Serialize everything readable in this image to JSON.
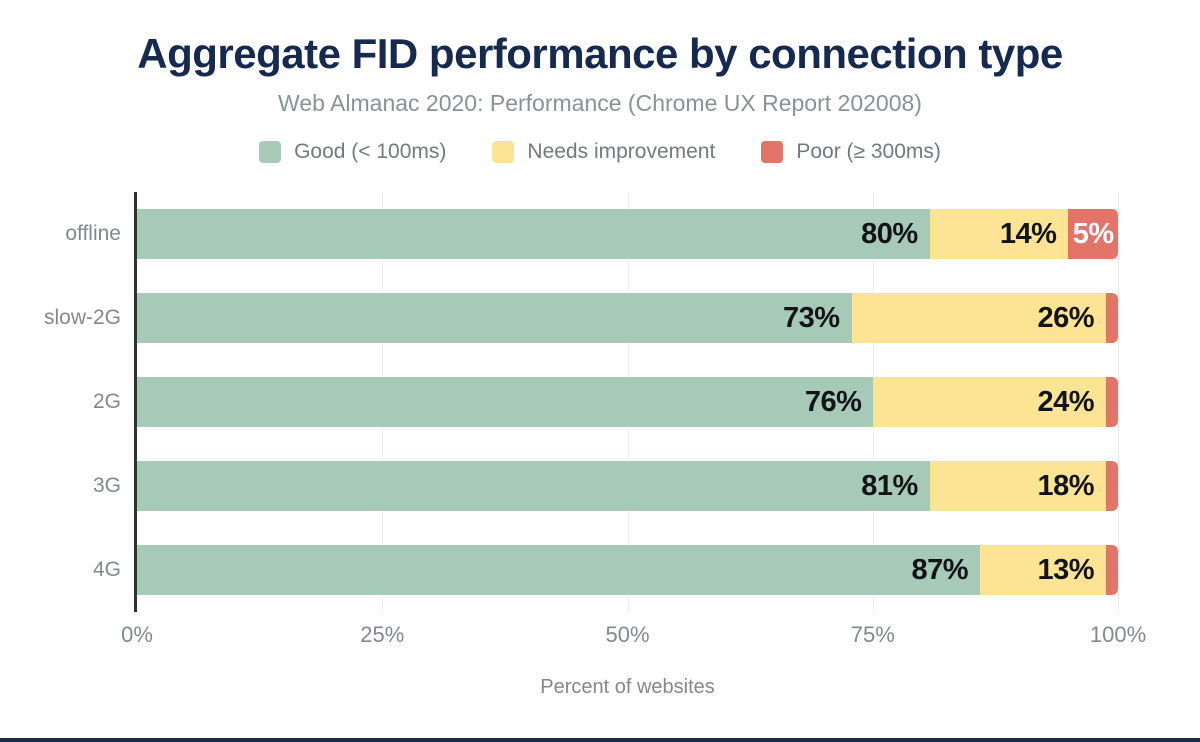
{
  "colors": {
    "title": "#152a4e",
    "subtitle_gray": "#8b9199",
    "axis_gray": "#84888e",
    "legend_gray": "#75797f",
    "axis_line": "#2e3138",
    "gridline": "#ebedef",
    "value_label_dark": "#121418",
    "value_label_light": "#ffffff",
    "good_green": "#a7c9b8",
    "needs_improvement_yellow": "#fde394",
    "poor_red": "#e2746a",
    "bottom_bar_navy": "#1a2b4a"
  },
  "chart_data": {
    "type": "bar",
    "orientation": "horizontal",
    "stacked": true,
    "title": "Aggregate FID performance by connection type",
    "subtitle": "Web Almanac 2020: Performance (Chrome UX Report 202008)",
    "xlabel": "Percent of websites",
    "xlim": [
      0,
      100
    ],
    "x_ticks": [
      {
        "pos": 0,
        "label": "0%"
      },
      {
        "pos": 25,
        "label": "25%"
      },
      {
        "pos": 50,
        "label": "50%"
      },
      {
        "pos": 75,
        "label": "75%"
      },
      {
        "pos": 100,
        "label": "100%"
      }
    ],
    "grid": "vertical",
    "legend_position": "top",
    "categories": [
      "offline",
      "slow-2G",
      "2G",
      "3G",
      "4G"
    ],
    "series": [
      {
        "name": "Good (< 100ms)",
        "color": "#a7c9b8",
        "values": [
          80,
          73,
          76,
          81,
          87
        ],
        "labels": [
          "80%",
          "73%",
          "76%",
          "81%",
          "87%"
        ],
        "label_color": "#121418",
        "label_align": "end"
      },
      {
        "name": "Needs improvement",
        "color": "#fde394",
        "values": [
          14,
          26,
          24,
          18,
          13
        ],
        "labels": [
          "14%",
          "26%",
          "24%",
          "18%",
          "13%"
        ],
        "label_color": "#121418",
        "label_align": "end"
      },
      {
        "name": "Poor (≥ 300ms)",
        "color": "#e2746a",
        "values": [
          5,
          1,
          1,
          1,
          1
        ],
        "labels": [
          "5%",
          "",
          "",
          "",
          ""
        ],
        "label_color": "#ffffff",
        "label_align": "center"
      }
    ]
  }
}
